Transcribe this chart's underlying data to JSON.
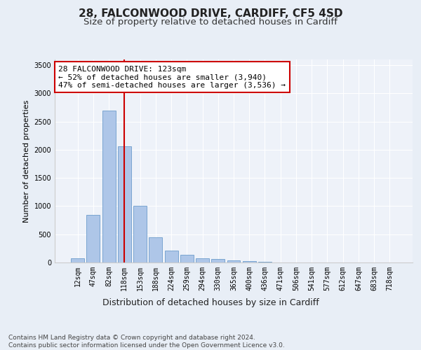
{
  "title1": "28, FALCONWOOD DRIVE, CARDIFF, CF5 4SD",
  "title2": "Size of property relative to detached houses in Cardiff",
  "xlabel": "Distribution of detached houses by size in Cardiff",
  "ylabel": "Number of detached properties",
  "categories": [
    "12sqm",
    "47sqm",
    "82sqm",
    "118sqm",
    "153sqm",
    "188sqm",
    "224sqm",
    "259sqm",
    "294sqm",
    "330sqm",
    "365sqm",
    "400sqm",
    "436sqm",
    "471sqm",
    "506sqm",
    "541sqm",
    "577sqm",
    "612sqm",
    "647sqm",
    "683sqm",
    "718sqm"
  ],
  "values": [
    80,
    850,
    2700,
    2060,
    1000,
    450,
    210,
    140,
    80,
    60,
    40,
    30,
    10,
    5,
    3,
    2,
    1,
    1,
    0,
    0,
    0
  ],
  "bar_color": "#aec6e8",
  "bar_edge_color": "#5a8fc4",
  "highlight_bar_index": 3,
  "highlight_line_color": "#cc0000",
  "ylim": [
    0,
    3600
  ],
  "yticks": [
    0,
    500,
    1000,
    1500,
    2000,
    2500,
    3000,
    3500
  ],
  "annotation_text": "28 FALCONWOOD DRIVE: 123sqm\n← 52% of detached houses are smaller (3,940)\n47% of semi-detached houses are larger (3,536) →",
  "annotation_box_color": "#ffffff",
  "annotation_box_edge": "#cc0000",
  "footer": "Contains HM Land Registry data © Crown copyright and database right 2024.\nContains public sector information licensed under the Open Government Licence v3.0.",
  "background_color": "#e8eef6",
  "plot_bg_color": "#eef2f9",
  "grid_color": "#ffffff",
  "title1_fontsize": 11,
  "title2_fontsize": 9.5,
  "xlabel_fontsize": 9,
  "ylabel_fontsize": 8,
  "tick_fontsize": 7,
  "annotation_fontsize": 8,
  "footer_fontsize": 6.5
}
